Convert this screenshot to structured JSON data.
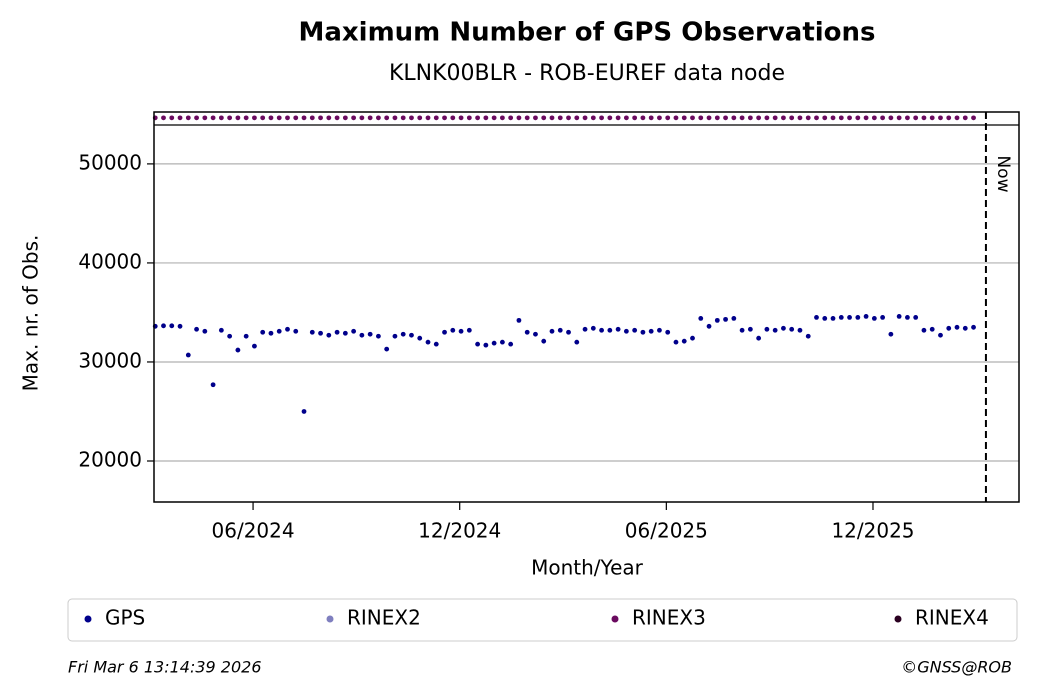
{
  "chart_data": {
    "type": "scatter",
    "title": "Maximum Number of GPS Observations",
    "subtitle": "KLNK00BLR - ROB-EUREF data node",
    "x_label": "Month/Year",
    "y_label": "Max. nr. of Obs.",
    "x": [
      2024.18,
      2024.2,
      2024.22,
      2024.24,
      2024.26,
      2024.28,
      2024.3,
      2024.32,
      2024.34,
      2024.36,
      2024.38,
      2024.4,
      2024.42,
      2024.44,
      2024.46,
      2024.48,
      2024.5,
      2024.52,
      2024.54,
      2024.56,
      2024.58,
      2024.6,
      2024.62,
      2024.64,
      2024.66,
      2024.68,
      2024.7,
      2024.72,
      2024.74,
      2024.76,
      2024.78,
      2024.8,
      2024.82,
      2024.84,
      2024.86,
      2024.88,
      2024.9,
      2024.92,
      2024.94,
      2024.96,
      2024.98,
      2025.0,
      2025.02,
      2025.04,
      2025.06,
      2025.08,
      2025.1,
      2025.12,
      2025.14,
      2025.16,
      2025.18,
      2025.2,
      2025.22,
      2025.24,
      2025.26,
      2025.28,
      2025.3,
      2025.32,
      2025.34,
      2025.36,
      2025.38,
      2025.4,
      2025.42,
      2025.44,
      2025.46,
      2025.48,
      2025.5,
      2025.52,
      2025.54,
      2025.56,
      2025.58,
      2025.6,
      2025.62,
      2025.64,
      2025.66,
      2025.68,
      2025.7,
      2025.72,
      2025.74,
      2025.76,
      2025.78,
      2025.8,
      2025.82,
      2025.84,
      2025.86,
      2025.88,
      2025.9,
      2025.92,
      2025.94,
      2025.96,
      2025.98,
      2026.0,
      2026.02,
      2026.04,
      2026.06,
      2026.08,
      2026.1,
      2026.12,
      2026.14,
      2026.16
    ],
    "series": [
      {
        "name": "GPS",
        "color": "#00008b",
        "values": [
          33600,
          33650,
          33650,
          33600,
          30700,
          33300,
          33100,
          27700,
          33200,
          32600,
          31200,
          32600,
          31600,
          33000,
          32900,
          33100,
          33300,
          33100,
          25000,
          33000,
          32900,
          32700,
          33000,
          32900,
          33100,
          32700,
          32800,
          32600,
          31300,
          32600,
          32800,
          32700,
          32400,
          32000,
          31800,
          33000,
          33200,
          33100,
          33200,
          31800,
          31700,
          31900,
          32000,
          31800,
          34200,
          33000,
          32800,
          32100,
          33100,
          33200,
          33000,
          32000,
          33300,
          33400,
          33200,
          33200,
          33300,
          33100,
          33200,
          33000,
          33100,
          33200,
          33000,
          32000,
          32100,
          32400,
          34400,
          33600,
          34200,
          34300,
          34400,
          33200,
          33300,
          32400,
          33300,
          33200,
          33400,
          33300,
          33200,
          32600,
          34500,
          34400,
          34400,
          34500,
          34500,
          34500,
          34600,
          34400,
          34500,
          32800,
          34600,
          34500,
          34500,
          33200,
          33300,
          32700,
          33400,
          33500,
          33400,
          33500
        ]
      },
      {
        "name": "RINEX2",
        "color": "#7f7fbf"
      },
      {
        "name": "RINEX3",
        "color": "#6a0a5f",
        "values": [
          54650,
          54650,
          54650,
          54650,
          54650,
          54650,
          54650,
          54650,
          54650,
          54650,
          54650,
          54650,
          54650,
          54650,
          54650,
          54650,
          54650,
          54650,
          54650,
          54650,
          54650,
          54650,
          54650,
          54650,
          54650,
          54650,
          54650,
          54650,
          54650,
          54650,
          54650,
          54650,
          54650,
          54650,
          54650,
          54650,
          54650,
          54650,
          54650,
          54650,
          54650,
          54650,
          54650,
          54650,
          54650,
          54650,
          54650,
          54650,
          54650,
          54650,
          54650,
          54650,
          54650,
          54650,
          54650,
          54650,
          54650,
          54650,
          54650,
          54650,
          54650,
          54650,
          54650,
          54650,
          54650,
          54650,
          54650,
          54650,
          54650,
          54650,
          54650,
          54650,
          54650,
          54650,
          54650,
          54650,
          54650,
          54650,
          54650,
          54650,
          54650,
          54650,
          54650,
          54650,
          54650,
          54650,
          54650,
          54650,
          54650,
          54650,
          54650,
          54650,
          54650,
          54650,
          54650,
          54650,
          54650,
          54650,
          54650,
          54650
        ]
      },
      {
        "name": "RINEX4",
        "color": "#2a0020"
      }
    ],
    "xlim": [
      2024.177,
      2026.27
    ],
    "xticks": [
      {
        "value": 2024.4167,
        "label": "06/2024"
      },
      {
        "value": 2024.9167,
        "label": "12/2024"
      },
      {
        "value": 2025.4167,
        "label": "06/2025"
      },
      {
        "value": 2025.9167,
        "label": "12/2025"
      }
    ],
    "ylim": [
      15860,
      55240
    ],
    "yticks": [
      20000,
      30000,
      40000,
      50000
    ],
    "grid": true,
    "annotations": [
      {
        "text": "Now",
        "x": 2026.19
      }
    ],
    "footer_left": "Fri Mar  6 13:14:39 2026",
    "footer_right": "©GNSS@ROB"
  }
}
